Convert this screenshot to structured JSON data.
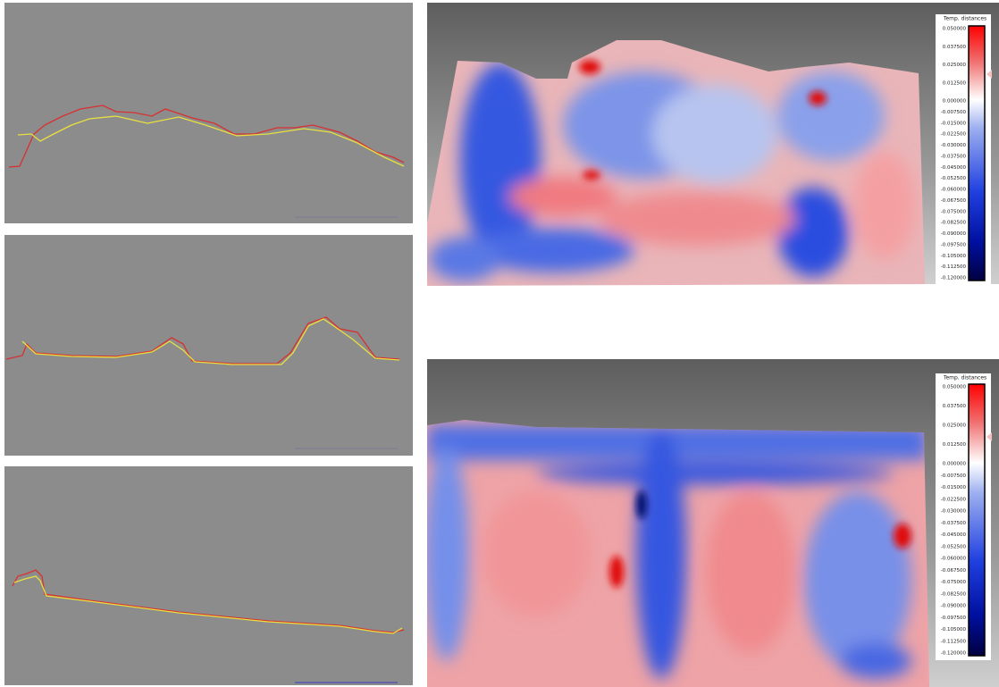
{
  "panels": [
    {
      "legend_title": "Temp. distances",
      "scale_labels": [
        "0.050000",
        "0.037500",
        "0.025000",
        "0.012500",
        "0.000000",
        "-0.007500",
        "-0.015000",
        "-0.022500",
        "-0.030000",
        "-0.037500",
        "-0.045000",
        "-0.052500",
        "-0.060000",
        "-0.067500",
        "-0.075000",
        "-0.082500",
        "-0.090000",
        "-0.097500",
        "-0.105000",
        "-0.112500",
        "-0.120000"
      ]
    },
    {
      "legend_title": "Temp. distances",
      "scale_labels": [
        "0.050000",
        "0.037500",
        "0.025000",
        "0.012500",
        "0.000000",
        "-0.007500",
        "-0.015000",
        "-0.022500",
        "-0.030000",
        "-0.037500",
        "-0.045000",
        "-0.052500",
        "-0.060000",
        "-0.067500",
        "-0.075000",
        "-0.082500",
        "-0.090000",
        "-0.097500",
        "-0.105000",
        "-0.112500",
        "-0.120000"
      ]
    }
  ]
}
